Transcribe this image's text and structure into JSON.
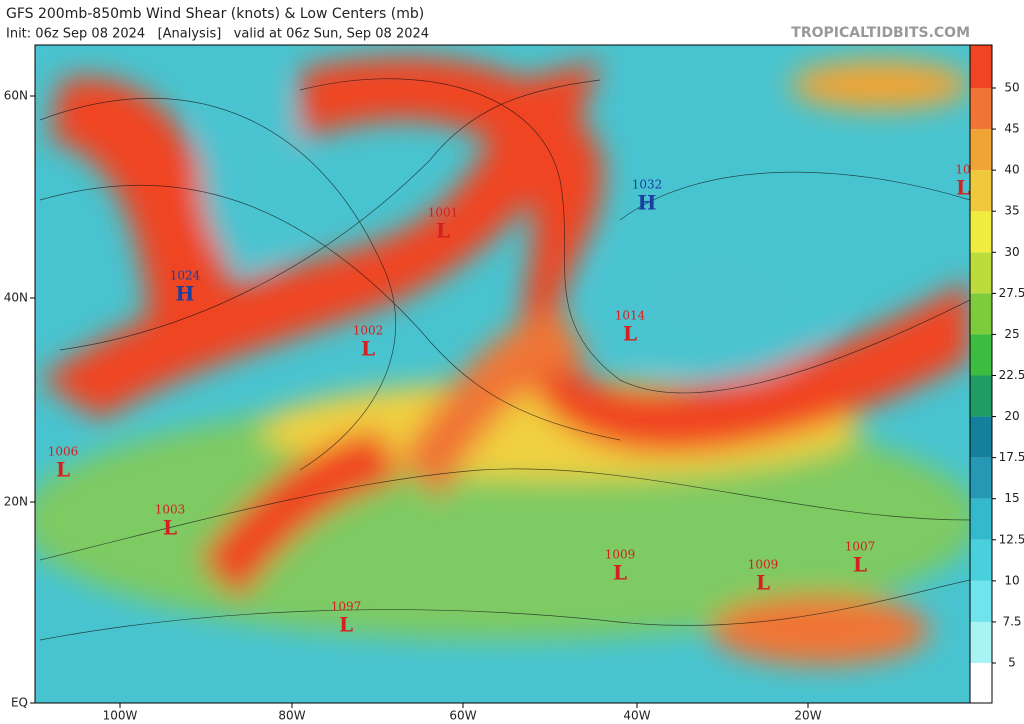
{
  "header": {
    "title": "GFS 200mb-850mb Wind Shear (knots) & Low Centers (mb)",
    "subtitle": "Init: 06z Sep 08 2024   [Analysis]   valid at 06z Sun, Sep 08 2024",
    "site": "TROPICALTIDBITS.COM"
  },
  "map": {
    "lat_labels": [
      "60N",
      "40N",
      "20N",
      "EQ"
    ],
    "lon_labels": [
      "100W",
      "80W",
      "60W",
      "40W",
      "20W"
    ],
    "centers": [
      {
        "type": "L",
        "pressure": "1006"
      },
      {
        "type": "L",
        "pressure": "1003"
      },
      {
        "type": "H",
        "pressure": "1024"
      },
      {
        "type": "L",
        "pressure": "1001"
      },
      {
        "type": "L",
        "pressure": "1002"
      },
      {
        "type": "H",
        "pressure": "1032"
      },
      {
        "type": "L",
        "pressure": "1014"
      },
      {
        "type": "L",
        "pressure": "1009"
      },
      {
        "type": "L",
        "pressure": "1009"
      },
      {
        "type": "L",
        "pressure": "1007"
      },
      {
        "type": "L",
        "pressure": "1097"
      },
      {
        "type": "L",
        "pressure": "10"
      }
    ]
  },
  "colorbar": {
    "ticks": [
      5,
      7.5,
      10,
      12.5,
      15,
      17.5,
      20,
      22.5,
      25,
      27.5,
      30,
      35,
      40,
      45,
      50
    ],
    "colors": [
      "#ffffff",
      "#a8f4f4",
      "#70e4ec",
      "#48d0dc",
      "#34b8cc",
      "#2498b4",
      "#14809c",
      "#1e9c64",
      "#3cbc40",
      "#7ccc3c",
      "#bcdc3c",
      "#f0ec40",
      "#f0c83c",
      "#f0a434",
      "#f07434",
      "#f04424"
    ]
  }
}
